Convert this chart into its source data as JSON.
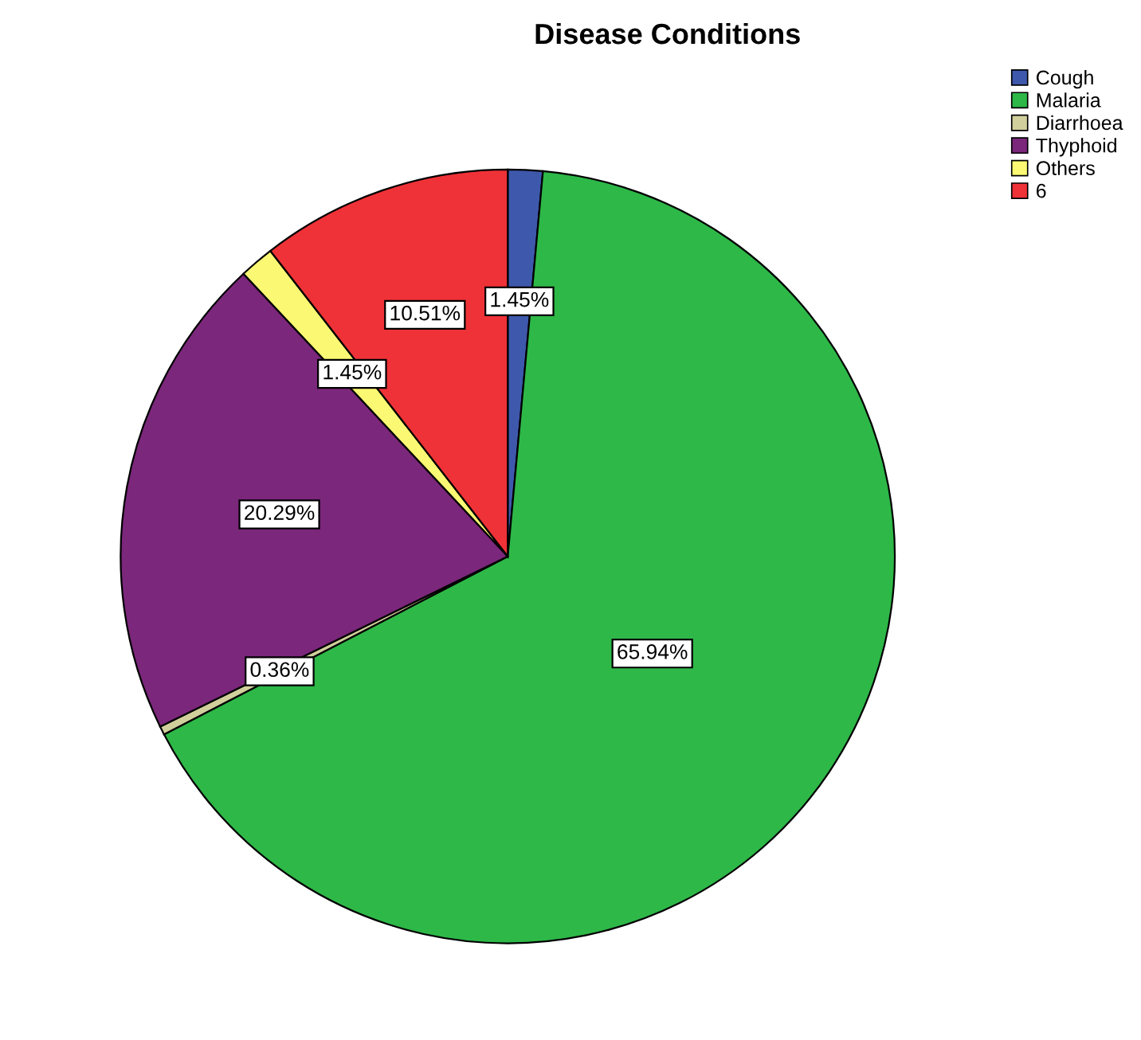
{
  "chart_data": {
    "type": "pie",
    "title": "Disease Conditions",
    "categories": [
      "Cough",
      "Malaria",
      "Diarrhoea",
      "Thyphoid",
      "Others",
      "6"
    ],
    "values": [
      1.45,
      65.94,
      0.36,
      20.29,
      1.45,
      10.51
    ],
    "value_labels": [
      "1.45%",
      "65.94%",
      "0.36%",
      "20.29%",
      "1.45%",
      "10.51%"
    ],
    "colors": [
      "#3e58ac",
      "#2eb848",
      "#d1cf9c",
      "#7b277b",
      "#fbf873",
      "#ef3237"
    ],
    "legend": "top right"
  }
}
